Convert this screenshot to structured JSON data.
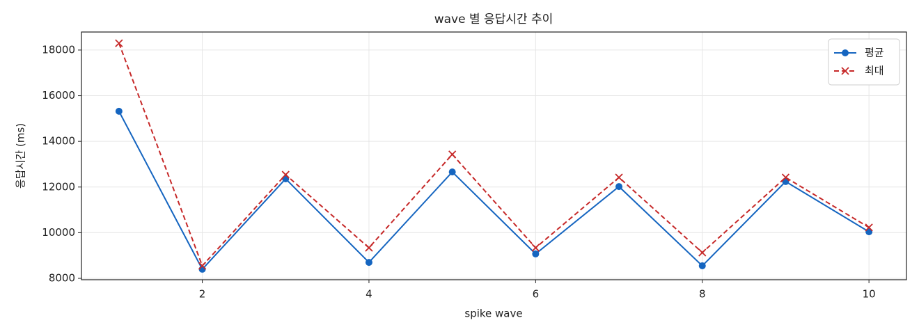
{
  "chart_data": {
    "type": "line",
    "title": "wave 별 응답시간 추이",
    "x_label": "spike wave",
    "y_label": "응답시간 (ms)",
    "x": [
      1,
      2,
      3,
      4,
      5,
      6,
      7,
      8,
      9,
      10
    ],
    "series": [
      {
        "name": "평균",
        "color": "#1565c0",
        "marker": "circle",
        "dash": "solid",
        "values": [
          15320,
          8400,
          12360,
          8700,
          12660,
          9070,
          12020,
          8550,
          12240,
          10040
        ]
      },
      {
        "name": "최대",
        "color": "#c62828",
        "marker": "x",
        "dash": "dashed",
        "values": [
          18300,
          8550,
          12540,
          9340,
          13430,
          9340,
          12420,
          9130,
          12420,
          10230
        ]
      }
    ],
    "xlim": [
      0.55,
      10.45
    ],
    "xticks": [
      2,
      4,
      6,
      8,
      10
    ],
    "ylim": [
      7940,
      18790
    ],
    "yticks": [
      8000,
      10000,
      12000,
      14000,
      16000,
      18000
    ],
    "grid": true,
    "legend": "upper right"
  }
}
